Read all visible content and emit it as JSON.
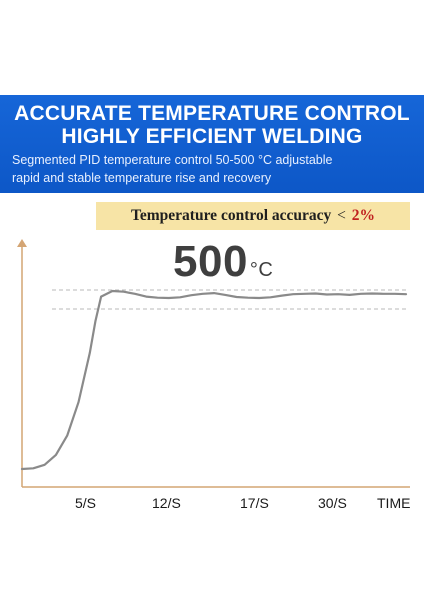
{
  "banner": {
    "headline_1": "ACCURATE TEMPERATURE CONTROL",
    "headline_2": "HIGHLY EFFICIENT WELDING",
    "subline_1": "Segmented PID temperature control 50-500 °C adjustable",
    "subline_2": "rapid and stable temperature rise and recovery"
  },
  "accuracy": {
    "label": "Temperature control accuracy",
    "symbol": "<",
    "value": "2%"
  },
  "target": {
    "value": "500",
    "unit": "°C"
  },
  "colors": {
    "banner_blue": "#1666d8",
    "accuracy_bg": "#f7e4a6",
    "accuracy_value": "#c0201f",
    "axis": "#d4a574",
    "curve": "#8a8a8a",
    "band": "#b8b8b8"
  },
  "chart_data": {
    "type": "line",
    "categories": [
      "5/S",
      "12/S",
      "17/S",
      "30/S",
      "TIME"
    ],
    "band": {
      "upper": 510,
      "lower": 490
    },
    "series": [
      {
        "x": [
          0,
          1,
          2,
          3,
          4,
          5,
          6,
          6.5,
          7,
          8,
          9,
          10,
          11,
          12,
          13,
          14,
          15,
          16,
          17,
          18,
          19,
          20,
          21,
          22,
          23,
          24,
          25,
          26,
          27,
          28,
          29,
          30,
          31,
          32,
          33,
          34
        ],
        "y": [
          0,
          2,
          12,
          40,
          95,
          190,
          330,
          420,
          490,
          506,
          504,
          498,
          490,
          487,
          486,
          488,
          494,
          498,
          500,
          495,
          489,
          487,
          486,
          488,
          493,
          497,
          498,
          499,
          496,
          497,
          495,
          498,
          499,
          498,
          498,
          497
        ]
      }
    ]
  }
}
